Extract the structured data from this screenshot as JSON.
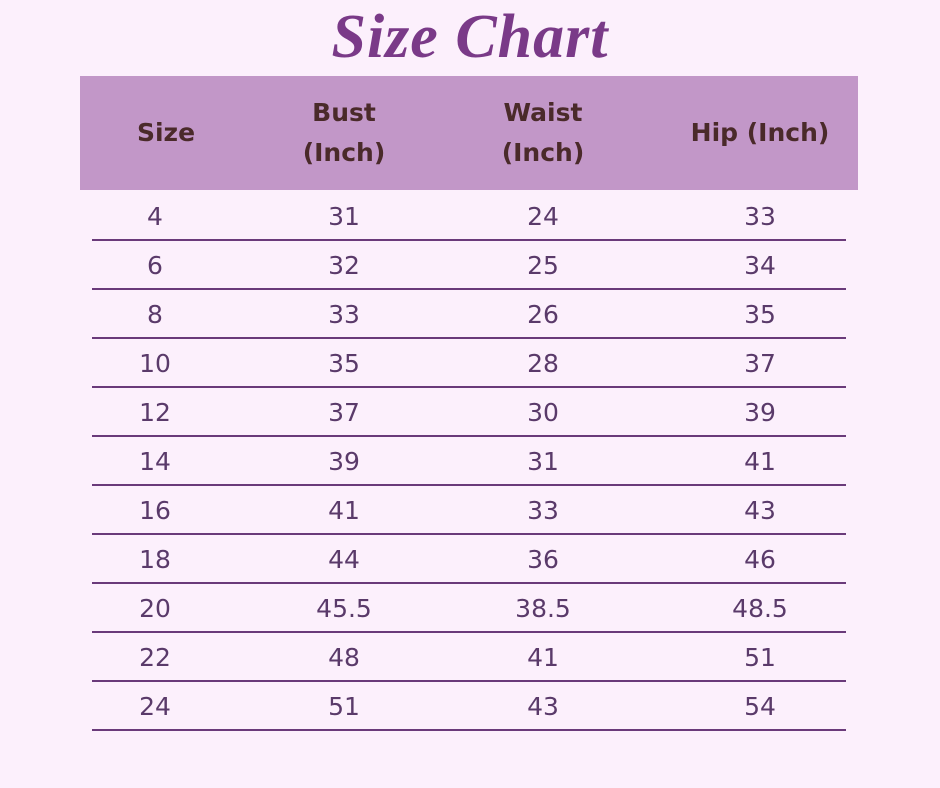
{
  "title": "Size Chart",
  "colors": {
    "background": "#fcf0fc",
    "header": "#c297c8",
    "title": "#7a3a88",
    "divider": "#6a3a7a"
  },
  "table": {
    "headers": [
      "Size",
      "Bust\n(Inch)",
      "Waist\n(Inch)",
      "Hip (Inch)"
    ],
    "rows": [
      [
        "4",
        "31",
        "24",
        "33"
      ],
      [
        "6",
        "32",
        "25",
        "34"
      ],
      [
        "8",
        "33",
        "26",
        "35"
      ],
      [
        "10",
        "35",
        "28",
        "37"
      ],
      [
        "12",
        "37",
        "30",
        "39"
      ],
      [
        "14",
        "39",
        "31",
        "41"
      ],
      [
        "16",
        "41",
        "33",
        "43"
      ],
      [
        "18",
        "44",
        "36",
        "46"
      ],
      [
        "20",
        "45.5",
        "38.5",
        "48.5"
      ],
      [
        "22",
        "48",
        "41",
        "51"
      ],
      [
        "24",
        "51",
        "43",
        "54"
      ]
    ]
  }
}
